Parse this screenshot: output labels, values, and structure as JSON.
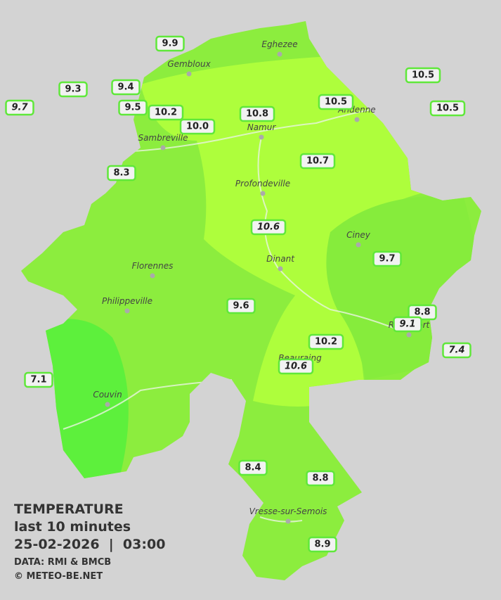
{
  "title": "TEMPERATURE",
  "subtitle": "last 10 minutes",
  "datetime": "25-02-2026  |  03:00",
  "source": "DATA: RMI & BMCB",
  "copyright": "© METEO-BE.NET",
  "cities": [
    "Eghezee",
    "Gembloux",
    "Andenne",
    "Namur",
    "Sambreville",
    "Profondeville",
    "Ciney",
    "Dinant",
    "Florennes",
    "Philippeville",
    "Rochefort",
    "Beauraing",
    "Couvin",
    "Vresse-sur-Semois"
  ],
  "stations": [
    "9.9",
    "9.3",
    "9.4",
    "9.7",
    "9.5",
    "10.2",
    "10.0",
    "10.8",
    "10.5",
    "10.5",
    "10.5",
    "10.7",
    "8.3",
    "10.6",
    "9.7",
    "9.6",
    "8.8",
    "9.1",
    "7.4",
    "10.2",
    "10.6",
    "7.1",
    "8.4",
    "8.8",
    "8.9"
  ]
}
